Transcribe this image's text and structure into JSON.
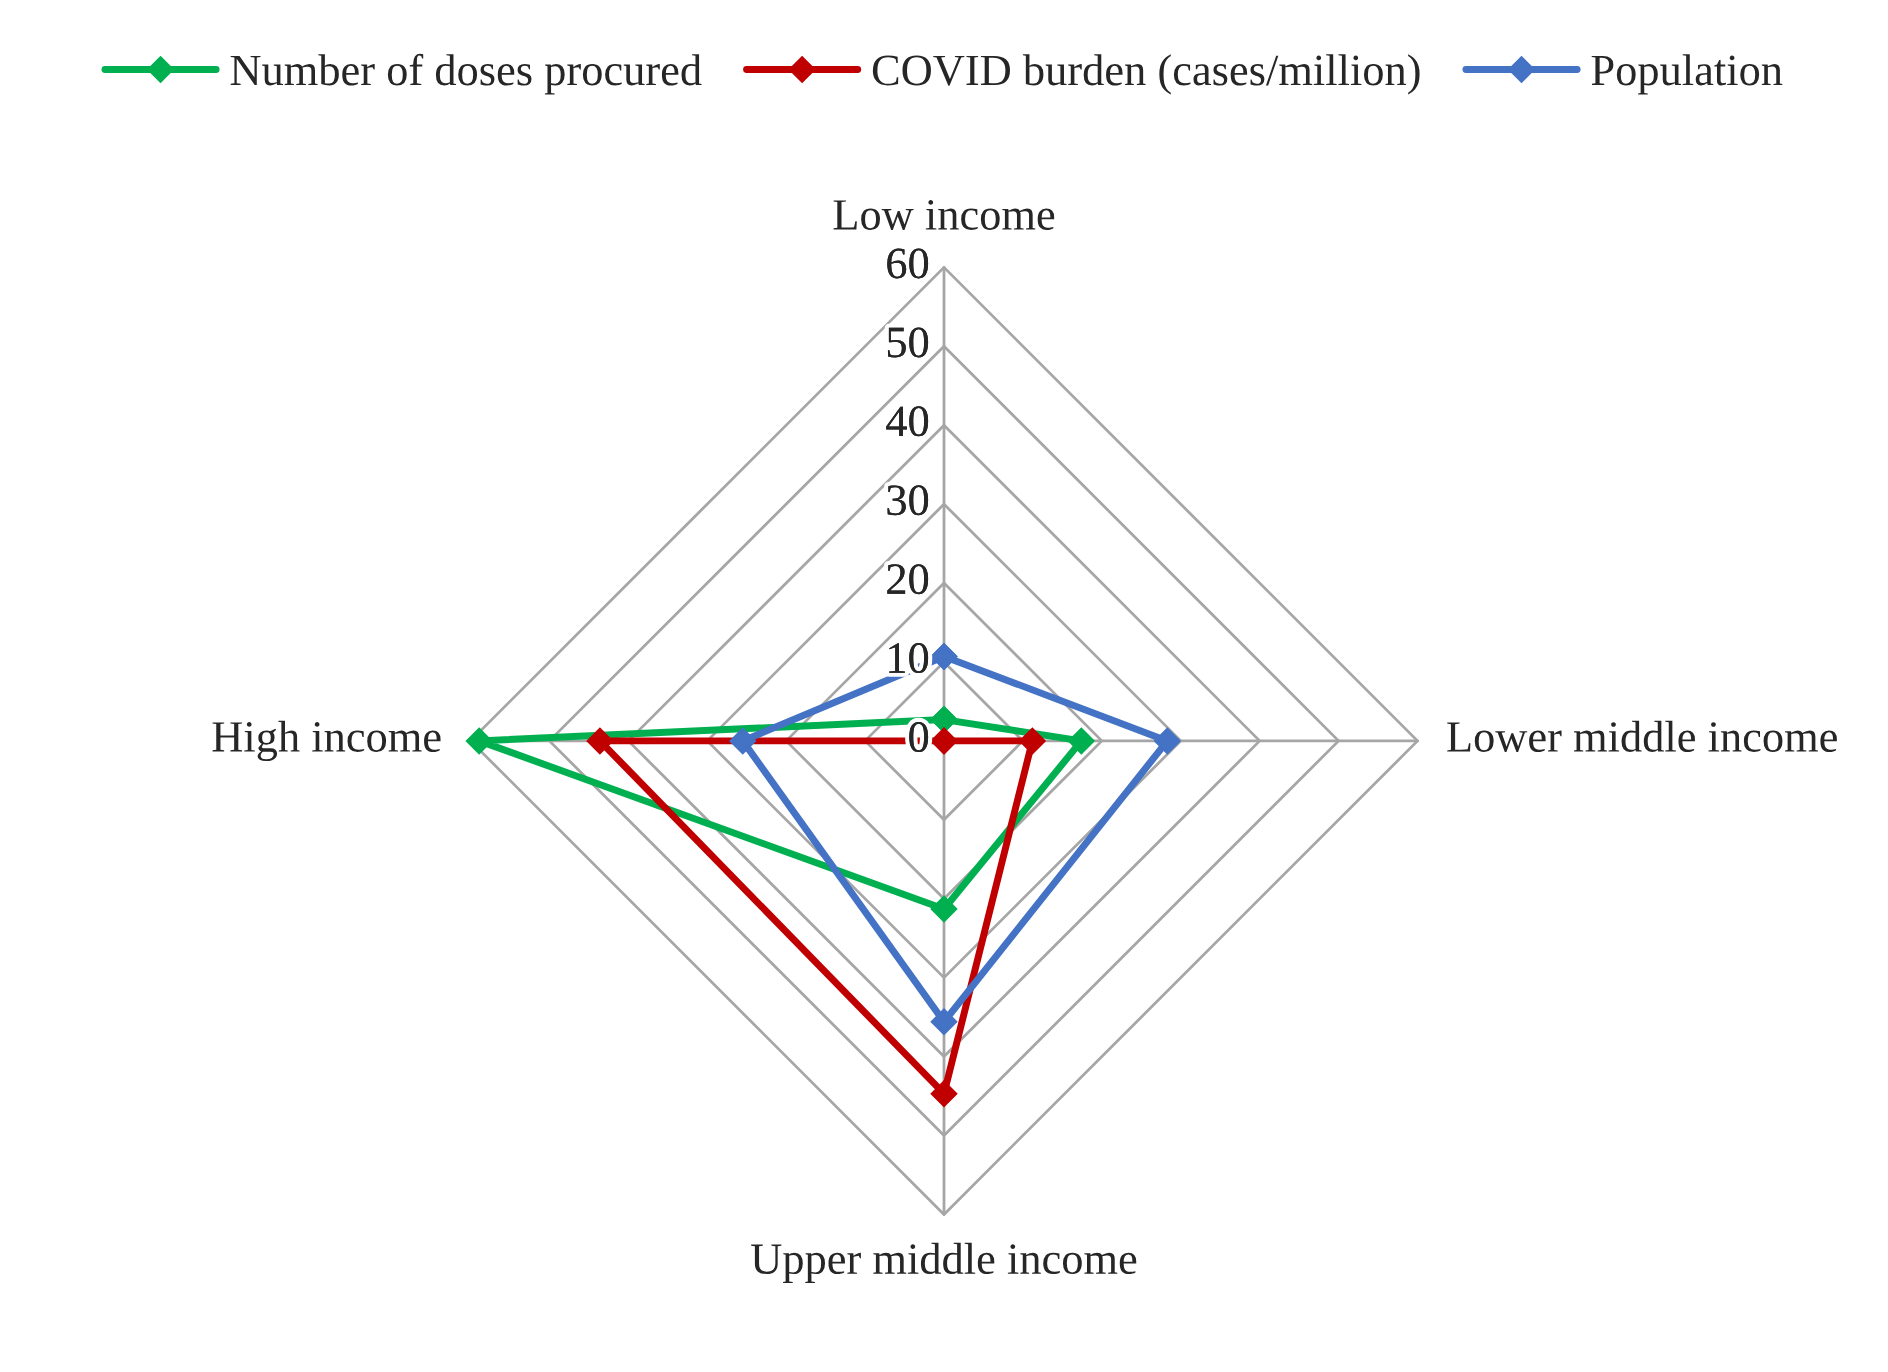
{
  "chart_data": {
    "type": "radar",
    "categories": [
      "Low income",
      "Lower middle income",
      "Upper middle income",
      "High income"
    ],
    "series": [
      {
        "name": "Number of doses procured",
        "color": "#00b050",
        "values": [
          2.7,
          17.4,
          21.3,
          58.9
        ]
      },
      {
        "name": "COVID burden (cases/million)",
        "color": "#c00000",
        "values": [
          0,
          11.2,
          44.7,
          43.6
        ]
      },
      {
        "name": "Population",
        "color": "#4472c4",
        "values": [
          10.7,
          28.3,
          35.6,
          25.5
        ]
      }
    ],
    "ylim": [
      0,
      60
    ],
    "yticks": [
      0,
      10,
      20,
      30,
      40,
      50,
      60
    ],
    "grid": true,
    "legend": "top",
    "marker": "diamond",
    "line_style": "solid"
  }
}
